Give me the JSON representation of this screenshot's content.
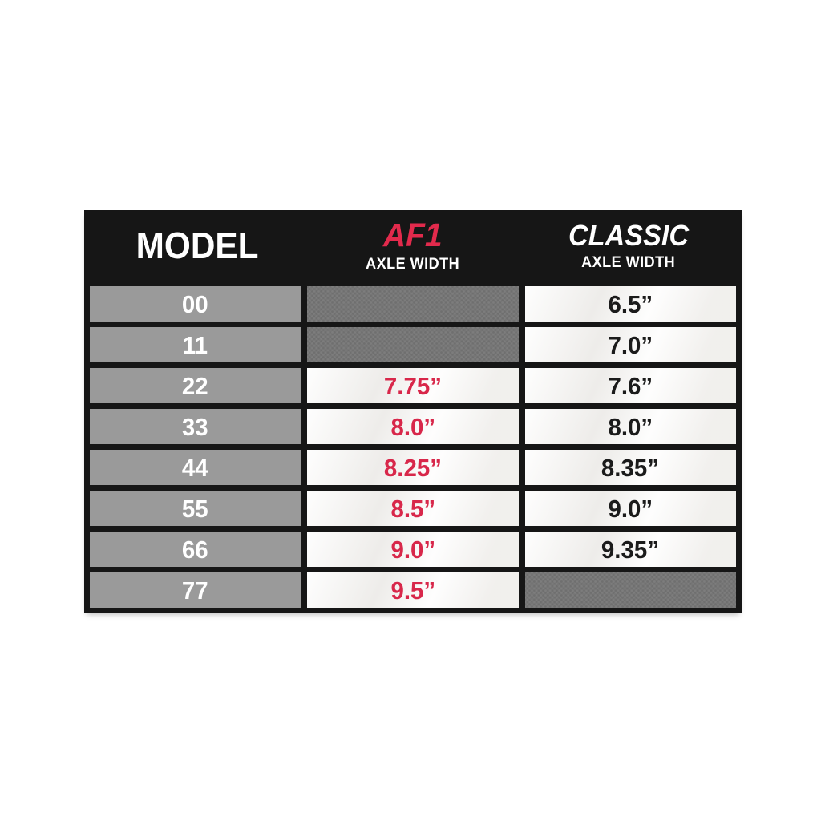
{
  "table": {
    "header": {
      "model_label": "MODEL",
      "af1_label": "AF1",
      "af1_sub": "AXLE WIDTH",
      "classic_label": "CLASSIC",
      "classic_sub": "AXLE WIDTH"
    },
    "rows": [
      {
        "model": "00",
        "af1": "",
        "classic": "6.5”"
      },
      {
        "model": "11",
        "af1": "",
        "classic": "7.0”"
      },
      {
        "model": "22",
        "af1": "7.75”",
        "classic": "7.6”"
      },
      {
        "model": "33",
        "af1": "8.0”",
        "classic": "8.0”"
      },
      {
        "model": "44",
        "af1": "8.25”",
        "classic": "8.35”"
      },
      {
        "model": "55",
        "af1": "8.5”",
        "classic": "9.0”"
      },
      {
        "model": "66",
        "af1": "9.0”",
        "classic": "9.35”"
      },
      {
        "model": "77",
        "af1": "9.5”",
        "classic": ""
      }
    ],
    "colors": {
      "header_bg": "#161616",
      "accent_red": "#e22a4c",
      "value_red": "#d8274a",
      "model_cell_bg": "#9a9a9a",
      "empty_cell_bg": "#767676",
      "value_cell_bg": "#f6f5f3",
      "value_text": "#1b1b1b",
      "white_text": "#ffffff"
    }
  },
  "chart_data": {
    "type": "table",
    "columns": [
      "MODEL",
      "AF1 AXLE WIDTH",
      "CLASSIC AXLE WIDTH"
    ],
    "rows": [
      [
        "00",
        "",
        "6.5”"
      ],
      [
        "11",
        "",
        "7.0”"
      ],
      [
        "22",
        "7.75”",
        "7.6”"
      ],
      [
        "33",
        "8.0”",
        "8.0”"
      ],
      [
        "44",
        "8.25”",
        "8.35”"
      ],
      [
        "55",
        "8.5”",
        "9.0”"
      ],
      [
        "66",
        "9.0”",
        "9.35”"
      ],
      [
        "77",
        "9.5”",
        ""
      ]
    ],
    "notes": "Empty cells rendered as dark gray (no size available for that model)"
  }
}
